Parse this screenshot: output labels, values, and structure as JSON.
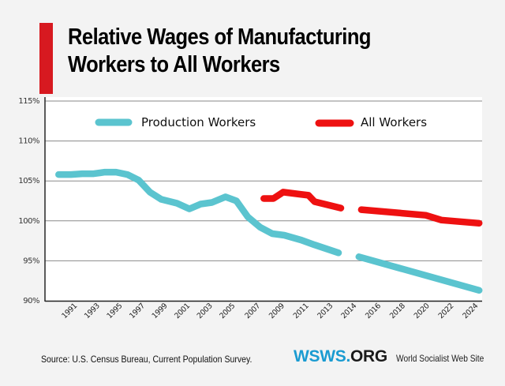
{
  "header": {
    "title_line1": "Relative Wages of Manufacturing",
    "title_line2": "Workers to All Workers",
    "accent_color": "#d71920"
  },
  "footer": {
    "source": "Source: U.S. Census Bureau, Current Population Survey.",
    "brand_part1": "WSWS.",
    "brand_part2": "ORG",
    "brand_sub": "World Socialist Web Site"
  },
  "chart_data": {
    "type": "line",
    "title": "Relative Wages of Manufacturing Workers to All Workers",
    "xlabel": "",
    "ylabel": "",
    "ylim": [
      90,
      115
    ],
    "yticks": [
      90,
      95,
      100,
      105,
      110,
      115
    ],
    "ytick_labels": [
      "90%",
      "95%",
      "100%",
      "105%",
      "110%",
      "115%"
    ],
    "x_categories": [
      "1991",
      "1993",
      "1995",
      "1997",
      "1999",
      "2001",
      "2003",
      "2005",
      "2007",
      "2009",
      "2011",
      "2013",
      "2014",
      "2016",
      "2018",
      "2020",
      "2022",
      "2024"
    ],
    "grid": "horizontal",
    "legend_position": "top",
    "series": [
      {
        "name": "Production Workers",
        "color": "#5bc4cf",
        "segments": [
          [
            {
              "x": 1989.9,
              "y": 105.8
            },
            {
              "x": 1991,
              "y": 105.8
            },
            {
              "x": 1992,
              "y": 105.9
            },
            {
              "x": 1993,
              "y": 105.9
            },
            {
              "x": 1994,
              "y": 106.1
            },
            {
              "x": 1995,
              "y": 106.1
            },
            {
              "x": 1996,
              "y": 105.8
            },
            {
              "x": 1997,
              "y": 105.1
            },
            {
              "x": 1998,
              "y": 103.6
            },
            {
              "x": 1999,
              "y": 102.7
            },
            {
              "x": 2000.4,
              "y": 102.2
            },
            {
              "x": 2001.5,
              "y": 101.5
            },
            {
              "x": 2002.5,
              "y": 102.1
            },
            {
              "x": 2003.5,
              "y": 102.3
            },
            {
              "x": 2004.7,
              "y": 103.0
            },
            {
              "x": 2005.6,
              "y": 102.5
            },
            {
              "x": 2006.5,
              "y": 100.5
            },
            {
              "x": 2007.5,
              "y": 99.2
            },
            {
              "x": 2008.5,
              "y": 98.4
            },
            {
              "x": 2009.5,
              "y": 98.2
            },
            {
              "x": 2010.9,
              "y": 97.6
            },
            {
              "x": 2012,
              "y": 97.0
            },
            {
              "x": 2013.5,
              "y": 96.0
            }
          ],
          [
            {
              "x": 2014.7,
              "y": 95.5
            },
            {
              "x": 2024.6,
              "y": 91.3
            }
          ]
        ]
      },
      {
        "name": "All Workers",
        "color": "#ee1111",
        "segments": [
          [
            {
              "x": 2007.8,
              "y": 102.8
            },
            {
              "x": 2008.6,
              "y": 102.8
            },
            {
              "x": 2009.4,
              "y": 103.6
            },
            {
              "x": 2011.5,
              "y": 103.2
            },
            {
              "x": 2012,
              "y": 102.4
            },
            {
              "x": 2013.6,
              "y": 101.6
            }
          ],
          [
            {
              "x": 2014.9,
              "y": 101.4
            },
            {
              "x": 2020.2,
              "y": 100.7
            },
            {
              "x": 2021.5,
              "y": 100.1
            },
            {
              "x": 2024.6,
              "y": 99.7
            }
          ]
        ]
      }
    ]
  }
}
